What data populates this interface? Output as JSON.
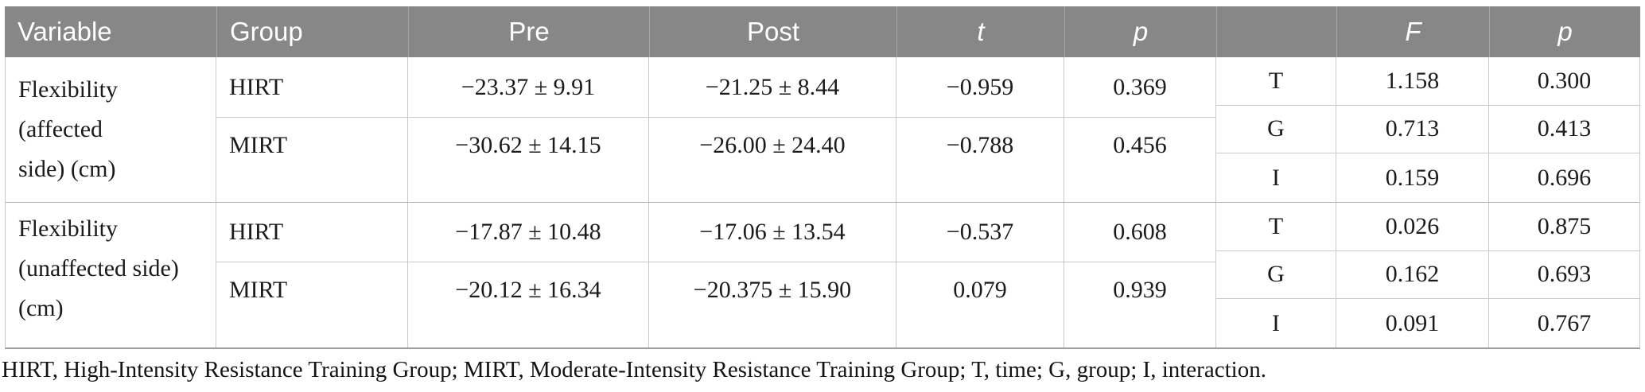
{
  "colors": {
    "header_bg": "#878787",
    "header_text": "#ffffff",
    "grid_line": "#c9c9c9"
  },
  "table": {
    "header": {
      "columns": [
        "Variable",
        "Group",
        "Pre",
        "Post",
        "t",
        "p",
        "",
        "F",
        "p"
      ]
    },
    "blocks": [
      {
        "variable_lines": [
          "Flexibility (affected",
          "side) (cm)"
        ],
        "groups": [
          {
            "group": "HIRT",
            "pre": "−23.37 ± 9.91",
            "post": "−21.25 ± 8.44",
            "t": "−0.959",
            "p": "0.369"
          },
          {
            "group": "MIRT",
            "pre": "−30.62 ± 14.15",
            "post": "−26.00 ± 24.40",
            "t": "−0.788",
            "p": "0.456"
          }
        ],
        "effects": [
          {
            "label": "T",
            "f": "1.158",
            "p": "0.300"
          },
          {
            "label": "G",
            "f": "0.713",
            "p": "0.413"
          },
          {
            "label": "I",
            "f": "0.159",
            "p": "0.696"
          }
        ]
      },
      {
        "variable_lines": [
          "Flexibility",
          "(unaffected side)",
          "(cm)"
        ],
        "groups": [
          {
            "group": "HIRT",
            "pre": "−17.87 ± 10.48",
            "post": "−17.06 ± 13.54",
            "t": "−0.537",
            "p": "0.608"
          },
          {
            "group": "MIRT",
            "pre": "−20.12 ± 16.34",
            "post": "−20.375 ± 15.90",
            "t": "0.079",
            "p": "0.939"
          }
        ],
        "effects": [
          {
            "label": "T",
            "f": "0.026",
            "p": "0.875"
          },
          {
            "label": "G",
            "f": "0.162",
            "p": "0.693"
          },
          {
            "label": "I",
            "f": "0.091",
            "p": "0.767"
          }
        ]
      }
    ],
    "footnote": "HIRT, High-Intensity Resistance Training Group; MIRT, Moderate-Intensity Resistance Training Group; T, time; G, group; I, interaction."
  }
}
